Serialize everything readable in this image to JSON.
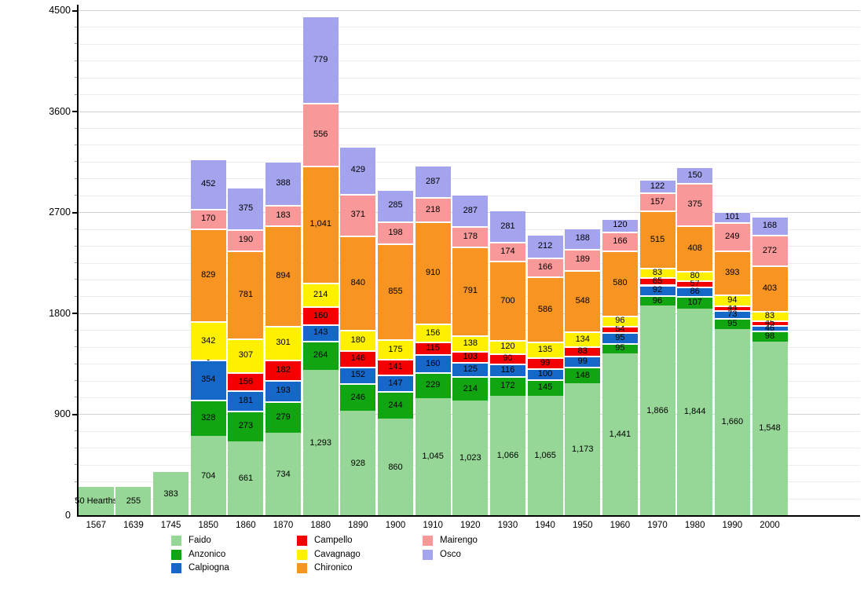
{
  "chart_data": {
    "type": "bar",
    "stacked": true,
    "grid": true,
    "legend_position": "bottom",
    "ylim": [
      0,
      4500
    ],
    "yticks": [
      0,
      900,
      1800,
      2700,
      3600,
      4500
    ],
    "minor_grid_step": 150,
    "categories": [
      "1567",
      "1639",
      "1745",
      "1850",
      "1860",
      "1870",
      "1880",
      "1890",
      "1900",
      "1910",
      "1920",
      "1930",
      "1940",
      "1950",
      "1960",
      "1970",
      "1980",
      "1990",
      "2000"
    ],
    "first_bar_annotation": "50 Hearths",
    "series": [
      {
        "name": "Faido",
        "color": "#96D696",
        "values": [
          250,
          255,
          383,
          704,
          661,
          734,
          1293,
          928,
          860,
          1045,
          1023,
          1066,
          1065,
          1173,
          1441,
          1866,
          1844,
          1660,
          1548
        ],
        "labels": [
          "50 Hearths",
          "255",
          "383",
          "704",
          "661",
          "734",
          "1,293",
          "928",
          "860",
          "1,045",
          "1,023",
          "1,066",
          "1,065",
          "1,173",
          "1,441",
          "1,866",
          "1,844",
          "1,660",
          "1,548"
        ]
      },
      {
        "name": "Anzonico",
        "color": "#12A512",
        "values": [
          null,
          null,
          null,
          328,
          273,
          279,
          264,
          246,
          244,
          229,
          214,
          172,
          145,
          148,
          95,
          96,
          107,
          95,
          98
        ],
        "labels": [
          null,
          null,
          null,
          "328",
          "273",
          "279",
          "264",
          "246",
          "244",
          "229",
          "214",
          "172",
          "145",
          "148",
          "95",
          "96",
          "107",
          "95",
          "98"
        ]
      },
      {
        "name": "Calpiogna",
        "color": "#1568C8",
        "values": [
          null,
          null,
          null,
          354,
          181,
          193,
          143,
          152,
          147,
          160,
          125,
          116,
          100,
          99,
          95,
          92,
          86,
          73,
          46
        ],
        "labels": [
          null,
          null,
          null,
          "354",
          "181",
          "193",
          "143",
          "152",
          "147",
          "160",
          "125",
          "116",
          "100",
          "99",
          "95",
          "92",
          "86",
          "73",
          "46"
        ]
      },
      {
        "name": "Campello",
        "color": "#F40000",
        "values": [
          null,
          null,
          null,
          0,
          156,
          182,
          160,
          146,
          141,
          115,
          103,
          90,
          99,
          83,
          54,
          65,
          57,
          44,
          45
        ],
        "labels": [
          null,
          null,
          null,
          "▪",
          "156",
          "182",
          "160",
          "146",
          "141",
          "115",
          "103",
          "90",
          "99",
          "83",
          "54",
          "65",
          "57",
          "44",
          "45"
        ]
      },
      {
        "name": "Cavagnago",
        "color": "#FFF000",
        "values": [
          null,
          null,
          null,
          342,
          307,
          301,
          214,
          180,
          175,
          156,
          138,
          120,
          135,
          134,
          96,
          83,
          80,
          94,
          83
        ],
        "labels": [
          null,
          null,
          null,
          "342",
          "307",
          "301",
          "214",
          "180",
          "175",
          "156",
          "138",
          "120",
          "135",
          "134",
          "96",
          "83",
          "80",
          "94",
          "83"
        ]
      },
      {
        "name": "Chironico",
        "color": "#F79422",
        "values": [
          null,
          null,
          null,
          829,
          781,
          894,
          1041,
          840,
          855,
          910,
          791,
          700,
          586,
          548,
          580,
          515,
          408,
          393,
          403
        ],
        "labels": [
          null,
          null,
          null,
          "829",
          "781",
          "894",
          "1,041",
          "840",
          "855",
          "910",
          "791",
          "700",
          "586",
          "548",
          "580",
          "515",
          "408",
          "393",
          "403"
        ]
      },
      {
        "name": "Mairengo",
        "color": "#F99898",
        "values": [
          null,
          null,
          null,
          170,
          190,
          183,
          556,
          371,
          198,
          218,
          178,
          174,
          166,
          189,
          166,
          157,
          375,
          249,
          272
        ],
        "labels": [
          null,
          null,
          null,
          "170",
          "190",
          "183",
          "556",
          "371",
          "198",
          "218",
          "178",
          "174",
          "166",
          "189",
          "166",
          "157",
          "375",
          "249",
          "272"
        ]
      },
      {
        "name": "Osco",
        "color": "#A3A3EE",
        "values": [
          null,
          null,
          null,
          452,
          375,
          388,
          779,
          429,
          285,
          287,
          287,
          281,
          212,
          188,
          120,
          122,
          150,
          101,
          168
        ],
        "labels": [
          null,
          null,
          null,
          "452",
          "375",
          "388",
          "779",
          "429",
          "285",
          "287",
          "287",
          "281",
          "212",
          "188",
          "120",
          "122",
          "150",
          "101",
          "168"
        ]
      }
    ],
    "legend_columns": [
      [
        0,
        1,
        2
      ],
      [
        3,
        4,
        5
      ],
      [
        6,
        7
      ]
    ]
  }
}
